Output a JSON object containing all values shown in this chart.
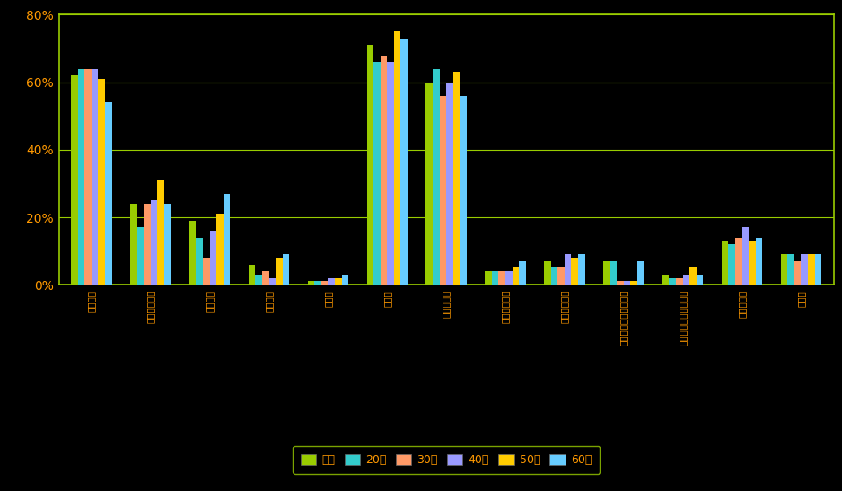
{
  "categories": [
    "サラダ油",
    "キャノーラ油",
    "べに花油",
    "コーン油",
    "網果油",
    "ごま油",
    "オリーブ油",
    "揚げ物専用油",
    "炊め物専用油",
    "ライトタイプサラダ油",
    "有機栽培原料の食用油",
    "健康オイル",
    "その他"
  ],
  "series": {
    "全体": [
      62,
      24,
      19,
      6,
      1,
      71,
      60,
      4,
      7,
      7,
      3,
      13,
      9
    ],
    "20代": [
      64,
      17,
      14,
      3,
      1,
      66,
      64,
      4,
      5,
      7,
      2,
      12,
      9
    ],
    "30代": [
      64,
      24,
      8,
      4,
      1,
      68,
      56,
      4,
      5,
      1,
      2,
      14,
      7
    ],
    "40代": [
      64,
      25,
      16,
      2,
      2,
      66,
      60,
      4,
      9,
      1,
      3,
      17,
      9
    ],
    "50代": [
      61,
      31,
      21,
      8,
      2,
      75,
      63,
      5,
      8,
      1,
      5,
      13,
      9
    ],
    "60代": [
      54,
      24,
      27,
      9,
      3,
      73,
      56,
      7,
      9,
      7,
      3,
      14,
      9
    ]
  },
  "colors": {
    "全体": "#99cc00",
    "20代": "#33cccc",
    "30代": "#ff9966",
    "40代": "#9999ff",
    "50代": "#ffcc00",
    "60代": "#66ccff"
  },
  "ylim": [
    0,
    80
  ],
  "yticks": [
    0,
    20,
    40,
    60,
    80
  ],
  "ytick_labels": [
    "0%",
    "20%",
    "40%",
    "60%",
    "80%"
  ],
  "background_color": "#000000",
  "plot_bg_color": "#000000",
  "grid_color": "#99cc00",
  "tick_color": "#ff9900",
  "axis_color": "#99cc00",
  "bar_width": 0.115,
  "figsize": [
    9.38,
    5.47
  ],
  "dpi": 100
}
